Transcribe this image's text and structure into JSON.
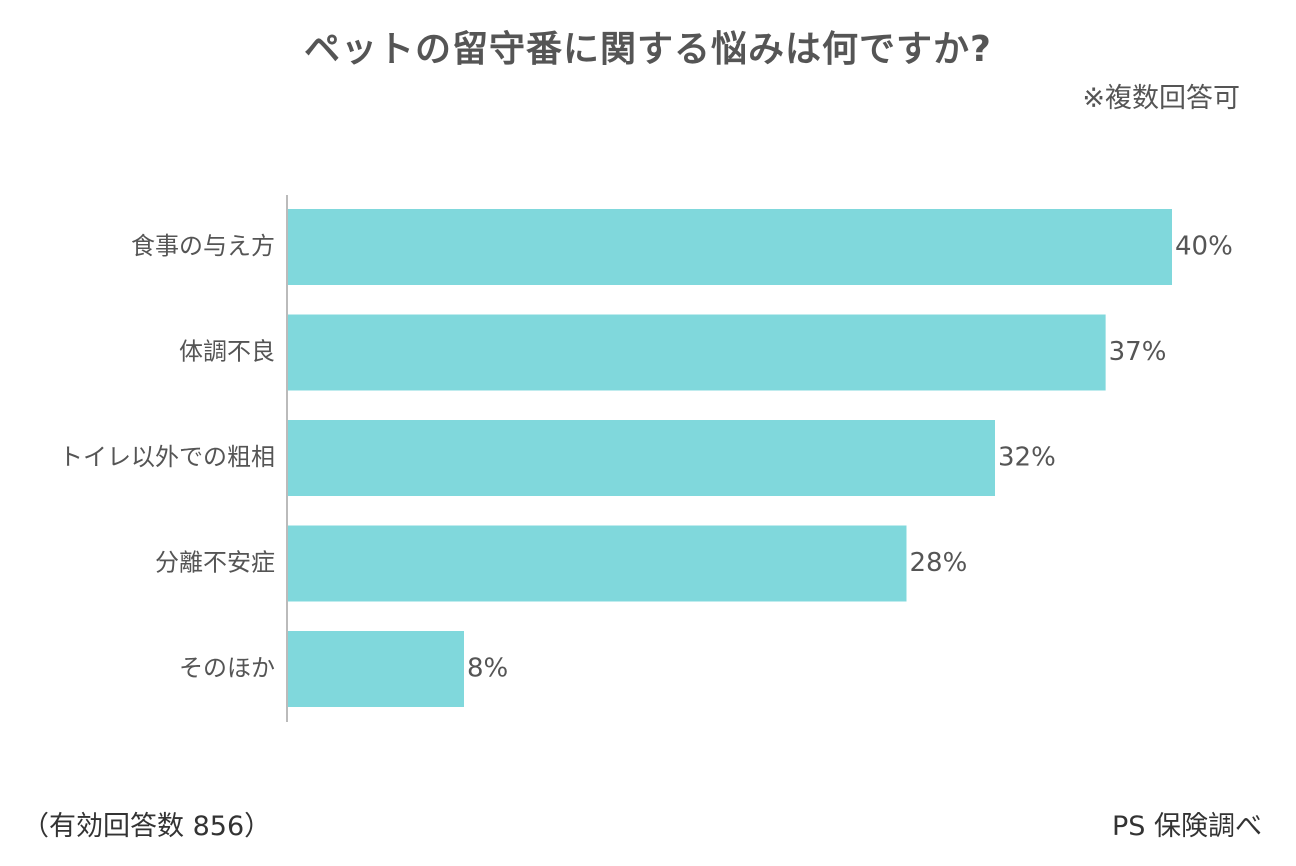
{
  "chart_data": {
    "type": "bar",
    "orientation": "horizontal",
    "title": "ペットの留守番に関する悩みは何ですか?",
    "note": "※複数回答可",
    "categories": [
      "食事の与え方",
      "体調不良",
      "トイレ以外での粗相",
      "分離不安症",
      "そのほか"
    ],
    "values": [
      40,
      37,
      32,
      28,
      8
    ],
    "value_labels": [
      "40%",
      "37%",
      "32%",
      "28%",
      "8%"
    ],
    "xlim": [
      0,
      40
    ],
    "unit": "%",
    "bar_color": "#80d8dc",
    "axis_color": "#bbbbbb",
    "grid": false,
    "legend": "none"
  },
  "footer": {
    "sample_size": "（有効回答数 856）",
    "source": "PS 保険調べ"
  }
}
